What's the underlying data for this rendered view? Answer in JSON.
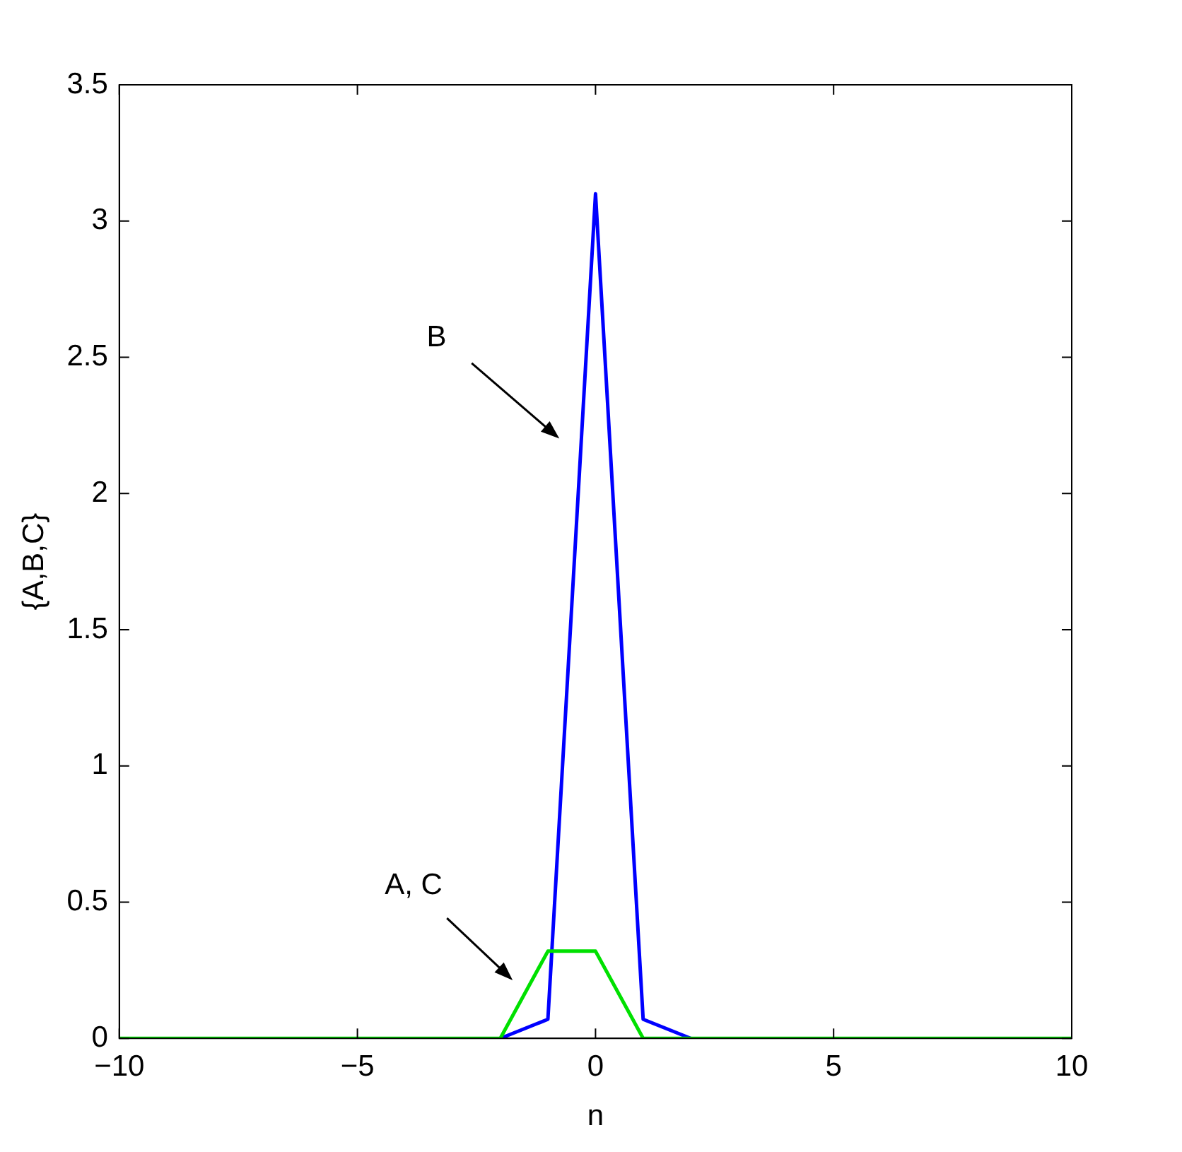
{
  "chart_data": {
    "type": "line",
    "xlabel": "n",
    "ylabel": "{A,B,C}",
    "x": [
      -10,
      -9,
      -8,
      -7,
      -6,
      -5,
      -4,
      -3,
      -2,
      -1,
      0,
      1,
      2,
      3,
      4,
      5,
      6,
      7,
      8,
      9,
      10
    ],
    "series": [
      {
        "color": "#0000ff",
        "values": [
          null,
          null,
          null,
          null,
          null,
          null,
          null,
          null,
          0,
          0.07,
          3.1,
          0.07,
          0,
          null,
          null,
          null,
          null,
          null,
          null,
          null,
          null
        ]
      },
      {
        "color": "#00e000",
        "values": [
          0,
          0,
          0,
          0,
          0,
          0,
          0,
          0,
          0,
          0.32,
          0.32,
          0,
          0,
          0,
          0,
          0,
          0,
          0,
          0,
          0,
          0
        ]
      }
    ],
    "xlim": [
      -10,
      10
    ],
    "xticks": [
      {
        "value": -10,
        "label": "−10"
      },
      {
        "value": -5,
        "label": "−5"
      },
      0,
      5,
      10
    ],
    "ylim": [
      0,
      3.5
    ],
    "yticks": [
      0,
      0.5,
      1,
      1.5,
      2,
      2.5,
      3,
      3.5
    ],
    "annotations": [
      "B",
      "A, C"
    ],
    "grid": false,
    "legend": false,
    "marker": "none",
    "line_style": "solid"
  }
}
